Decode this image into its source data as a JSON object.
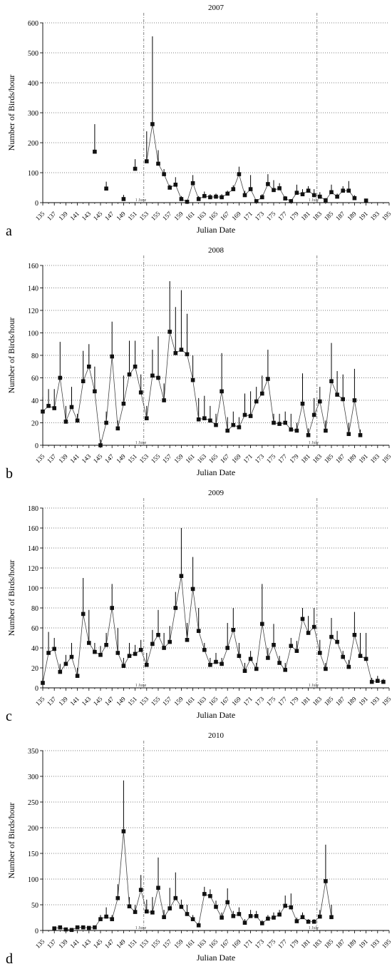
{
  "chart_data": [
    {
      "type": "line",
      "panel_letter": "a",
      "title": "2007",
      "xlabel": "Julian Date",
      "ylabel": "Number of Birds/hour",
      "ylim": [
        0,
        600
      ],
      "yticks": [
        0,
        100,
        200,
        300,
        400,
        500,
        600
      ],
      "xlim": [
        135,
        195
      ],
      "xticks": [
        "135",
        "137",
        "139",
        "141",
        "143",
        "145",
        "147",
        "149",
        "151",
        "153",
        "155",
        "157",
        "159",
        "161",
        "163",
        "165",
        "167",
        "169",
        "171",
        "173",
        "175",
        "177",
        "179",
        "181",
        "183",
        "185",
        "187",
        "189",
        "191",
        "193",
        "195"
      ],
      "grid": "horizontal dotted",
      "markers": [
        {
          "label": "1 June",
          "x": 152.5
        },
        {
          "label": "1 July",
          "x": 182.5
        }
      ],
      "points": [
        [
          144,
          170,
          262
        ],
        [
          146,
          47,
          70
        ],
        [
          149,
          12,
          26
        ],
        [
          151,
          113,
          145
        ],
        [
          153,
          138,
          238
        ],
        [
          154,
          262,
          555
        ],
        [
          155,
          130,
          175
        ],
        [
          156,
          95,
          112
        ],
        [
          157,
          50,
          60
        ],
        [
          158,
          60,
          85
        ],
        [
          159,
          12,
          22
        ],
        [
          160,
          3,
          8
        ],
        [
          161,
          65,
          92
        ],
        [
          162,
          12,
          22
        ],
        [
          163,
          22,
          37
        ],
        [
          164,
          18,
          28
        ],
        [
          165,
          20,
          30
        ],
        [
          166,
          18,
          28
        ],
        [
          167,
          30,
          40
        ],
        [
          168,
          45,
          58
        ],
        [
          169,
          95,
          120
        ],
        [
          170,
          25,
          40
        ],
        [
          171,
          45,
          92
        ],
        [
          172,
          5,
          10
        ],
        [
          173,
          18,
          28
        ],
        [
          174,
          62,
          95
        ],
        [
          175,
          42,
          75
        ],
        [
          176,
          48,
          65
        ],
        [
          177,
          14,
          22
        ],
        [
          178,
          5,
          10
        ],
        [
          179,
          33,
          60
        ],
        [
          180,
          28,
          45
        ],
        [
          181,
          40,
          55
        ],
        [
          182,
          25,
          45
        ],
        [
          183,
          20,
          35
        ],
        [
          184,
          8,
          15
        ],
        [
          185,
          35,
          60
        ],
        [
          186,
          20,
          30
        ],
        [
          187,
          40,
          55
        ],
        [
          188,
          40,
          72
        ],
        [
          189,
          15,
          25
        ],
        [
          191,
          7,
          12
        ]
      ],
      "breaks_after": [
        144,
        146,
        149,
        151,
        189
      ]
    },
    {
      "type": "line",
      "panel_letter": "b",
      "title": "2008",
      "xlabel": "Julian Date",
      "ylabel": "Number of Birds/hour",
      "ylim": [
        0,
        160
      ],
      "yticks": [
        0,
        20,
        40,
        60,
        80,
        100,
        120,
        140,
        160
      ],
      "xlim": [
        135,
        195
      ],
      "xticks": [
        "135",
        "137",
        "139",
        "141",
        "143",
        "145",
        "147",
        "149",
        "151",
        "153",
        "155",
        "157",
        "159",
        "161",
        "163",
        "165",
        "167",
        "169",
        "171",
        "173",
        "175",
        "177",
        "179",
        "181",
        "183",
        "185",
        "187",
        "189",
        "191",
        "193",
        "195"
      ],
      "grid": "horizontal dotted",
      "markers": [
        {
          "label": "1 June",
          "x": 152.5
        },
        {
          "label": "1 July",
          "x": 182.5
        }
      ],
      "points": [
        [
          135,
          30,
          43
        ],
        [
          136,
          35,
          50
        ],
        [
          137,
          33,
          50
        ],
        [
          138,
          60,
          92
        ],
        [
          139,
          21,
          35
        ],
        [
          140,
          34,
          52
        ],
        [
          141,
          22,
          28
        ],
        [
          142,
          57,
          84
        ],
        [
          143,
          70,
          90
        ],
        [
          144,
          48,
          70
        ],
        [
          145,
          0,
          5
        ],
        [
          146,
          20,
          30
        ],
        [
          147,
          79,
          110
        ],
        [
          148,
          15,
          22
        ],
        [
          149,
          37,
          62
        ],
        [
          150,
          63,
          93
        ],
        [
          151,
          70,
          93
        ],
        [
          152,
          47,
          63
        ],
        [
          153,
          24,
          35
        ],
        [
          154,
          62,
          85
        ],
        [
          155,
          60,
          97
        ],
        [
          156,
          40,
          55
        ],
        [
          157,
          101,
          146
        ],
        [
          158,
          82,
          123
        ],
        [
          159,
          85,
          138
        ],
        [
          160,
          81,
          117
        ],
        [
          161,
          58,
          80
        ],
        [
          162,
          23,
          42
        ],
        [
          163,
          24,
          44
        ],
        [
          164,
          22,
          35
        ],
        [
          165,
          18,
          28
        ],
        [
          166,
          48,
          82
        ],
        [
          167,
          13,
          25
        ],
        [
          168,
          18,
          30
        ],
        [
          169,
          16,
          25
        ],
        [
          170,
          27,
          46
        ],
        [
          171,
          26,
          48
        ],
        [
          172,
          39,
          52
        ],
        [
          173,
          46,
          62
        ],
        [
          174,
          59,
          85
        ],
        [
          175,
          20,
          28
        ],
        [
          176,
          19,
          28
        ],
        [
          177,
          20,
          30
        ],
        [
          178,
          14,
          28
        ],
        [
          179,
          13,
          20
        ],
        [
          180,
          37,
          64
        ],
        [
          181,
          9,
          15
        ],
        [
          182,
          27,
          42
        ],
        [
          183,
          39,
          52
        ],
        [
          184,
          13,
          22
        ],
        [
          185,
          57,
          91
        ],
        [
          186,
          45,
          66
        ],
        [
          187,
          41,
          63
        ],
        [
          188,
          10,
          20
        ],
        [
          189,
          40,
          68
        ],
        [
          190,
          9,
          14
        ]
      ],
      "breaks_after": []
    },
    {
      "type": "line",
      "panel_letter": "c",
      "title": "2009",
      "xlabel": "Julian Date",
      "ylabel": "Number of Birds/hour",
      "ylim": [
        0,
        180
      ],
      "yticks": [
        0,
        20,
        40,
        60,
        80,
        100,
        120,
        140,
        160,
        180
      ],
      "xlim": [
        135,
        195
      ],
      "xticks": [
        "135",
        "137",
        "139",
        "141",
        "143",
        "145",
        "147",
        "149",
        "151",
        "153",
        "155",
        "157",
        "159",
        "161",
        "163",
        "165",
        "167",
        "169",
        "171",
        "173",
        "175",
        "177",
        "179",
        "181",
        "183",
        "185",
        "187",
        "189",
        "191",
        "193",
        "195"
      ],
      "grid": "horizontal dotted",
      "markers": [
        {
          "label": "1 June",
          "x": 152.5
        },
        {
          "label": "1 July",
          "x": 182.5
        }
      ],
      "points": [
        [
          135,
          5,
          10
        ],
        [
          136,
          35,
          56
        ],
        [
          137,
          39,
          50
        ],
        [
          138,
          16,
          24
        ],
        [
          139,
          24,
          33
        ],
        [
          140,
          31,
          45
        ],
        [
          141,
          12,
          20
        ],
        [
          142,
          74,
          110
        ],
        [
          143,
          45,
          78
        ],
        [
          144,
          36,
          45
        ],
        [
          145,
          33,
          42
        ],
        [
          146,
          43,
          55
        ],
        [
          147,
          80,
          104
        ],
        [
          148,
          35,
          60
        ],
        [
          149,
          22,
          30
        ],
        [
          150,
          32,
          45
        ],
        [
          151,
          34,
          43
        ],
        [
          152,
          38,
          48
        ],
        [
          153,
          23,
          35
        ],
        [
          154,
          44,
          58
        ],
        [
          155,
          53,
          78
        ],
        [
          156,
          40,
          55
        ],
        [
          157,
          46,
          62
        ],
        [
          158,
          80,
          96
        ],
        [
          159,
          112,
          160
        ],
        [
          160,
          48,
          65
        ],
        [
          161,
          99,
          131
        ],
        [
          162,
          57,
          80
        ],
        [
          163,
          38,
          45
        ],
        [
          164,
          23,
          30
        ],
        [
          165,
          26,
          35
        ],
        [
          166,
          24,
          30
        ],
        [
          167,
          40,
          65
        ],
        [
          168,
          58,
          80
        ],
        [
          169,
          32,
          45
        ],
        [
          170,
          17,
          25
        ],
        [
          171,
          29,
          37
        ],
        [
          172,
          19,
          25
        ],
        [
          173,
          64,
          104
        ],
        [
          174,
          30,
          40
        ],
        [
          175,
          43,
          64
        ],
        [
          176,
          25,
          32
        ],
        [
          177,
          18,
          25
        ],
        [
          178,
          42,
          50
        ],
        [
          179,
          37,
          47
        ],
        [
          180,
          69,
          80
        ],
        [
          181,
          55,
          72
        ],
        [
          182,
          61,
          80
        ],
        [
          183,
          35,
          48
        ],
        [
          184,
          19,
          25
        ],
        [
          185,
          51,
          70
        ],
        [
          186,
          46,
          57
        ],
        [
          187,
          31,
          37
        ],
        [
          188,
          21,
          28
        ],
        [
          189,
          53,
          76
        ],
        [
          190,
          32,
          55
        ],
        [
          191,
          29,
          55
        ],
        [
          192,
          6,
          10
        ],
        [
          193,
          7,
          12
        ],
        [
          194,
          6,
          9
        ]
      ],
      "breaks_after": []
    },
    {
      "type": "line",
      "panel_letter": "d",
      "title": "2010",
      "xlabel": "Julian Date",
      "ylabel": "Number of Birds/hour",
      "ylim": [
        0,
        350
      ],
      "yticks": [
        0,
        50,
        100,
        150,
        200,
        250,
        300,
        350
      ],
      "xlim": [
        135,
        195
      ],
      "xticks": [
        "135",
        "137",
        "139",
        "141",
        "143",
        "145",
        "147",
        "149",
        "151",
        "153",
        "155",
        "157",
        "159",
        "161",
        "163",
        "165",
        "167",
        "169",
        "171",
        "173",
        "175",
        "177",
        "179",
        "181",
        "183",
        "185",
        "187",
        "189",
        "191",
        "193",
        "195"
      ],
      "grid": "horizontal dotted",
      "markers": [
        {
          "label": "1 June",
          "x": 152.5
        },
        {
          "label": "1 July",
          "x": 182.5
        }
      ],
      "points": [
        [
          137,
          4,
          7
        ],
        [
          138,
          6,
          8
        ],
        [
          139,
          2,
          4
        ],
        [
          140,
          1,
          2
        ],
        [
          141,
          6,
          8
        ],
        [
          142,
          6,
          8
        ],
        [
          143,
          5,
          7
        ],
        [
          144,
          6,
          9
        ],
        [
          145,
          22,
          30
        ],
        [
          146,
          27,
          45
        ],
        [
          147,
          22,
          30
        ],
        [
          148,
          63,
          90
        ],
        [
          149,
          193,
          292
        ],
        [
          150,
          47,
          65
        ],
        [
          151,
          36,
          50
        ],
        [
          152,
          79,
          108
        ],
        [
          153,
          37,
          60
        ],
        [
          154,
          35,
          65
        ],
        [
          155,
          83,
          142
        ],
        [
          156,
          26,
          40
        ],
        [
          157,
          43,
          83
        ],
        [
          158,
          63,
          113
        ],
        [
          159,
          46,
          60
        ],
        [
          160,
          32,
          50
        ],
        [
          161,
          22,
          30
        ],
        [
          162,
          10,
          15
        ],
        [
          163,
          71,
          85
        ],
        [
          164,
          67,
          80
        ],
        [
          165,
          46,
          58
        ],
        [
          166,
          25,
          35
        ],
        [
          167,
          55,
          82
        ],
        [
          168,
          28,
          38
        ],
        [
          169,
          32,
          45
        ],
        [
          170,
          15,
          22
        ],
        [
          171,
          28,
          40
        ],
        [
          172,
          28,
          38
        ],
        [
          173,
          14,
          20
        ],
        [
          174,
          23,
          30
        ],
        [
          175,
          25,
          35
        ],
        [
          176,
          31,
          40
        ],
        [
          177,
          48,
          68
        ],
        [
          178,
          45,
          72
        ],
        [
          179,
          18,
          25
        ],
        [
          180,
          26,
          35
        ],
        [
          181,
          17,
          22
        ],
        [
          182,
          17,
          22
        ],
        [
          183,
          27,
          40
        ],
        [
          184,
          96,
          167
        ],
        [
          185,
          26,
          50
        ]
      ],
      "breaks_after": []
    }
  ]
}
